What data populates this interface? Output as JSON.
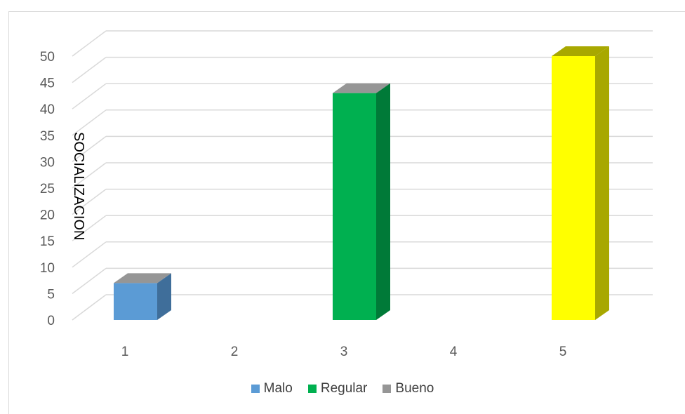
{
  "chart_data": {
    "type": "bar",
    "style": "3d-column",
    "categories": [
      "1",
      "2",
      "3",
      "4",
      "5"
    ],
    "series": [
      {
        "name": "Malo",
        "values": [
          7,
          0,
          0,
          0,
          0
        ],
        "color": "#5b9bd5",
        "side": "#3f6e9a"
      },
      {
        "name": "Regular",
        "values": [
          0,
          0,
          43,
          0,
          0
        ],
        "color": "#00b050",
        "side": "#007a38"
      },
      {
        "name": "Bueno",
        "values": [
          0,
          0,
          0,
          0,
          0
        ],
        "color": "#969696",
        "side": "#6e6e6e"
      }
    ],
    "extra_bar": {
      "category": "5",
      "value": 50,
      "color": "#ffff00",
      "side": "#a8a800"
    },
    "ylabel": "SOCIALIZACION",
    "ylim": [
      0,
      50
    ],
    "yticks": [
      "0",
      "5",
      "10",
      "15",
      "20",
      "25",
      "30",
      "35",
      "40",
      "45",
      "50"
    ],
    "grid": true,
    "legend_position": "bottom"
  }
}
